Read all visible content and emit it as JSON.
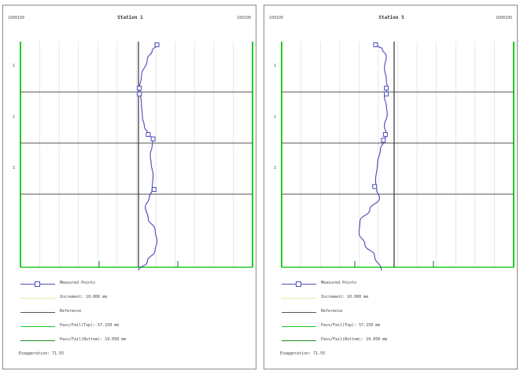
{
  "panels": [
    {
      "header_left": "1000100",
      "header_title": "Station 1",
      "header_right": "100100",
      "row_labels": [
        "1",
        "2",
        "3"
      ],
      "chart_data": {
        "type": "line",
        "series": [
          {
            "name": "Measured Points",
            "points": [
              [
                0.38,
                0.0
              ],
              [
                0.28,
                0.04
              ],
              [
                0.18,
                0.1
              ],
              [
                0.06,
                0.22
              ],
              [
                0.02,
                0.3
              ],
              [
                0.04,
                0.34
              ],
              [
                0.06,
                0.4
              ],
              [
                0.08,
                0.5
              ],
              [
                0.12,
                0.56
              ],
              [
                0.2,
                0.62
              ],
              [
                0.3,
                0.65
              ],
              [
                0.28,
                0.7
              ],
              [
                0.24,
                0.76
              ],
              [
                0.26,
                0.82
              ],
              [
                0.3,
                0.9
              ],
              [
                0.28,
                1.0
              ],
              [
                0.22,
                1.06
              ],
              [
                0.14,
                1.12
              ],
              [
                0.2,
                1.2
              ],
              [
                0.34,
                1.28
              ],
              [
                0.38,
                1.36
              ],
              [
                0.34,
                1.42
              ],
              [
                0.18,
                1.5
              ],
              [
                0.0,
                1.56
              ]
            ],
            "markers": [
              [
                0.38,
                0.0
              ],
              [
                0.02,
                0.3
              ],
              [
                0.02,
                0.34
              ],
              [
                0.2,
                0.62
              ],
              [
                0.3,
                0.65
              ],
              [
                0.32,
                1.0
              ]
            ]
          }
        ]
      }
    },
    {
      "header_left": "100100",
      "header_title": "Station 5",
      "header_right": "1000100",
      "row_labels": [
        "1",
        "2",
        "3"
      ],
      "chart_data": {
        "type": "line",
        "series": [
          {
            "name": "Measured Points",
            "points": [
              [
                -0.38,
                0.0
              ],
              [
                -0.24,
                0.03
              ],
              [
                -0.16,
                0.08
              ],
              [
                -0.2,
                0.16
              ],
              [
                -0.16,
                0.24
              ],
              [
                -0.14,
                0.3
              ],
              [
                -0.2,
                0.36
              ],
              [
                -0.16,
                0.42
              ],
              [
                -0.14,
                0.48
              ],
              [
                -0.2,
                0.56
              ],
              [
                -0.16,
                0.62
              ],
              [
                -0.2,
                0.66
              ],
              [
                -0.28,
                0.72
              ],
              [
                -0.34,
                0.82
              ],
              [
                -0.38,
                0.94
              ],
              [
                -0.36,
                1.0
              ],
              [
                -0.3,
                1.06
              ],
              [
                -0.5,
                1.14
              ],
              [
                -0.7,
                1.22
              ],
              [
                -0.72,
                1.3
              ],
              [
                -0.6,
                1.38
              ],
              [
                -0.4,
                1.46
              ],
              [
                -0.26,
                1.56
              ]
            ],
            "markers": [
              [
                -0.38,
                0.0
              ],
              [
                -0.16,
                0.3
              ],
              [
                -0.16,
                0.34
              ],
              [
                -0.18,
                0.62
              ],
              [
                -0.22,
                0.66
              ],
              [
                -0.4,
                0.98
              ]
            ]
          }
        ]
      }
    }
  ],
  "legend": [
    {
      "label": "Measured Points",
      "color": "#5050c0",
      "style": "marker"
    },
    {
      "label": "Increment: 10.000 mm",
      "color": "#e8e8a8",
      "style": "line"
    },
    {
      "label": "Reference",
      "color": "#555555",
      "style": "line"
    },
    {
      "label": "Pass/Fail(Top): 57.150 mm",
      "color": "#22cc22",
      "style": "line"
    },
    {
      "label": "Pass/Fail(Bottom): 19.050 mm",
      "color": "#228822",
      "style": "line"
    },
    {
      "label": "Exaggeration: 71.55",
      "color": "",
      "style": "text"
    }
  ],
  "colors": {
    "curve": "#4a4ab8",
    "passfail_top": "#22cc22",
    "passfail_bottom": "#2f8f2f",
    "grid": "#d8d8d8",
    "reference": "#333333",
    "row_line": "#555555"
  }
}
